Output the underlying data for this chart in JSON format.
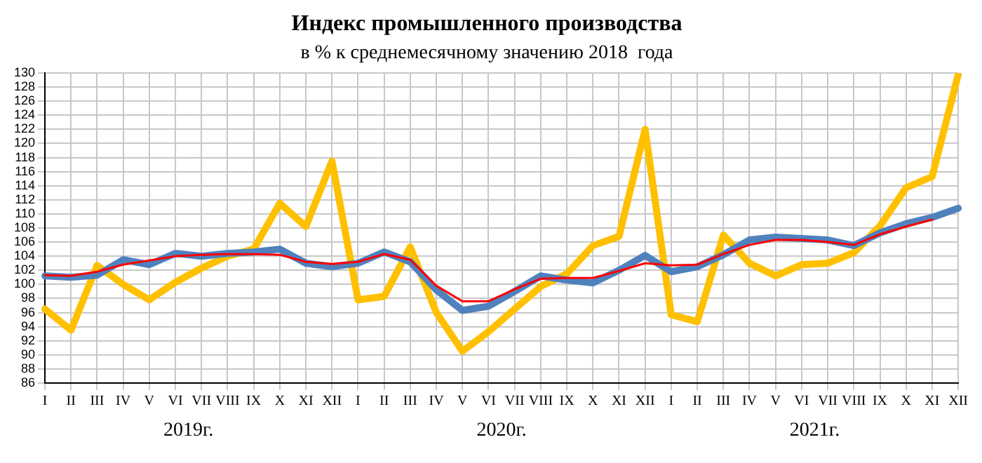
{
  "chart_data": {
    "type": "line",
    "title": "Индекс промышленного производства",
    "subtitle": "в % к среднемесячному значению 2018  года",
    "categories": [
      "I",
      "II",
      "III",
      "IV",
      "V",
      "VI",
      "VII",
      "VIII",
      "IX",
      "X",
      "XI",
      "XII",
      "I",
      "II",
      "III",
      "IV",
      "V",
      "VI",
      "VII",
      "VIII",
      "IX",
      "X",
      "XI",
      "XII",
      "I",
      "II",
      "III",
      "IV",
      "V",
      "VI",
      "VII",
      "VIII",
      "IX",
      "X",
      "XI",
      "XII"
    ],
    "series": [
      {
        "color": "#ffc000",
        "values": [
          96.5,
          93.5,
          102.7,
          100,
          97.8,
          100.3,
          102.3,
          104,
          105,
          111.5,
          108.2,
          117.5,
          97.8,
          98.3,
          105.3,
          96,
          90.5,
          93.3,
          96.5,
          99.7,
          101.5,
          105.5,
          106.8,
          122,
          95.7,
          94.7,
          107,
          103,
          101.2,
          102.8,
          103,
          104.5,
          108.3,
          113.7,
          115.3,
          129.8
        ]
      },
      {
        "color": "#4f81bd",
        "values": [
          101.2,
          101,
          101.3,
          103.5,
          102.8,
          104.4,
          104,
          104.4,
          104.6,
          105,
          103,
          102.5,
          103,
          104.6,
          103.2,
          99.2,
          96.3,
          96.9,
          99,
          101.2,
          100.6,
          100.2,
          102,
          104.1,
          101.8,
          102.5,
          104.2,
          106.3,
          106.7,
          106.5,
          106.3,
          105.5,
          107.3,
          108.6,
          109.5,
          110.8
        ]
      },
      {
        "color": "#ff0000",
        "values": [
          101.3,
          101.2,
          101.8,
          102.8,
          103.4,
          104,
          104.2,
          104.3,
          104.3,
          104.2,
          103.2,
          102.9,
          103.2,
          104.3,
          103.5,
          99.8,
          97.6,
          97.6,
          99.3,
          100.8,
          100.9,
          100.9,
          101.9,
          103,
          102.7,
          102.8,
          104.3,
          105.6,
          106.3,
          106.3,
          106,
          105.6,
          107.1,
          108.2,
          109.2,
          null
        ]
      }
    ],
    "ylim": [
      86,
      130
    ],
    "yticks": [
      86,
      88,
      90,
      92,
      94,
      96,
      98,
      100,
      102,
      104,
      106,
      108,
      110,
      112,
      114,
      116,
      118,
      120,
      122,
      124,
      126,
      128,
      130
    ],
    "grid": true,
    "marker": "none",
    "line_style": "solid",
    "annotations": [
      "2019г.",
      "2020г.",
      "2021г."
    ]
  }
}
